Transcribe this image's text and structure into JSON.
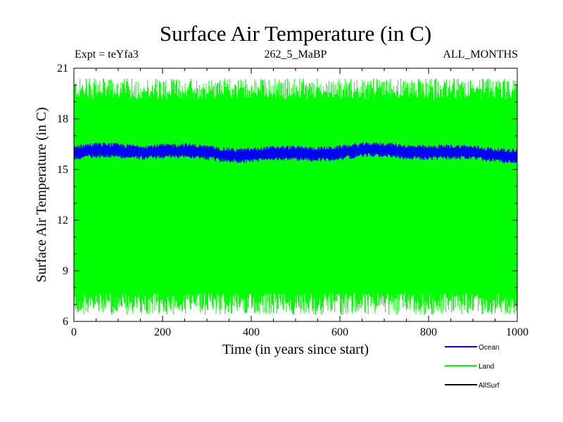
{
  "chart_data": {
    "type": "line",
    "title": "Surface Air Temperature (in C)",
    "subtitle_left": "Expt = teYfa3",
    "subtitle_center": "262_5_MaBP",
    "subtitle_right": "ALL_MONTHS",
    "xlabel": "Time (in years since start)",
    "ylabel": "Surface Air Temperature (in C)",
    "xlim": [
      0,
      1000
    ],
    "ylim": [
      6,
      21
    ],
    "xticks": [
      0,
      200,
      400,
      600,
      800,
      1000
    ],
    "yticks": [
      6,
      9,
      12,
      15,
      18,
      21
    ],
    "legend_position": "bottom-right",
    "series": [
      {
        "name": "Ocean",
        "color": "#0000ff",
        "description": "band",
        "mean": 16.0,
        "range": [
          15.4,
          16.6
        ]
      },
      {
        "name": "Land",
        "color": "#00ff00",
        "description": "band",
        "mean": 13.5,
        "range": [
          6.4,
          20.4
        ]
      },
      {
        "name": "AllSurf",
        "color": "#000000",
        "description": "line",
        "mean": null,
        "range": null
      }
    ]
  }
}
